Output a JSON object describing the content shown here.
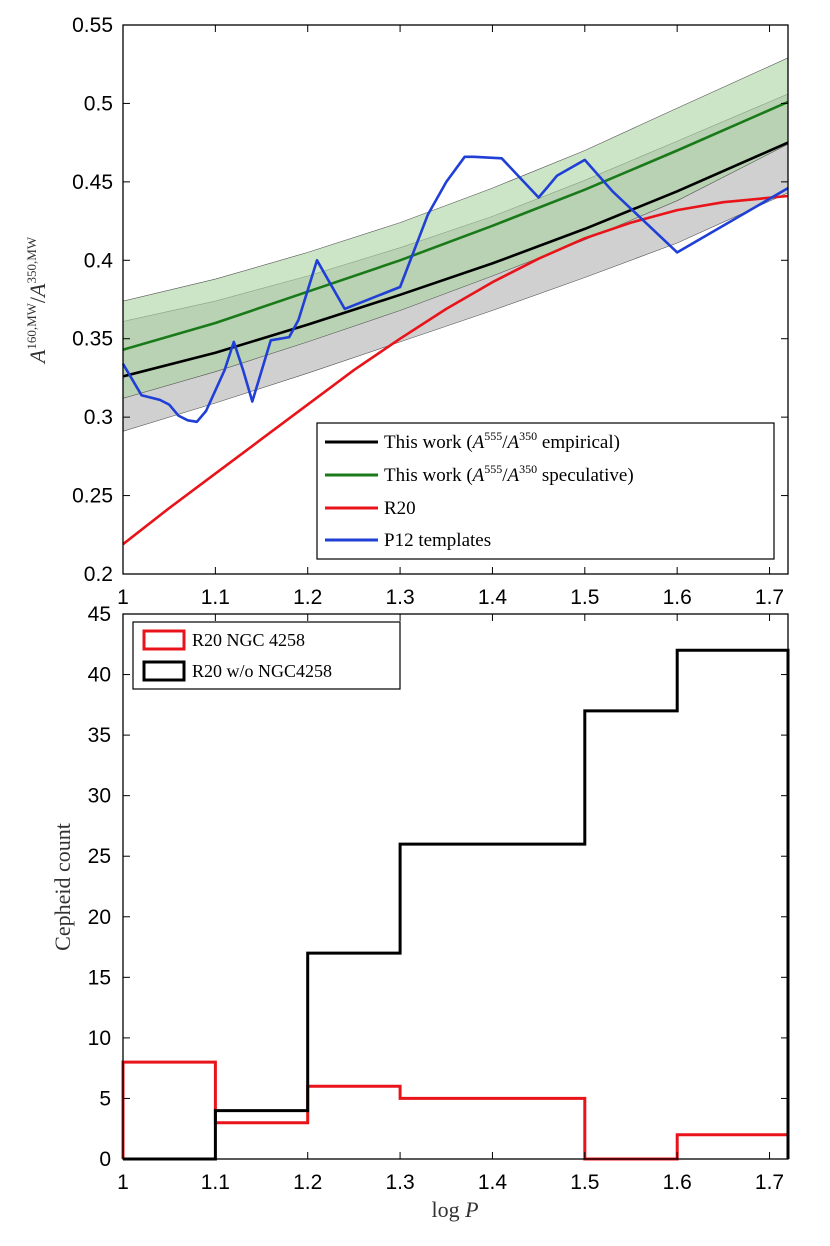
{
  "chart_data": [
    {
      "type": "line",
      "xlim": [
        1,
        1.72
      ],
      "ylim": [
        0.2,
        0.55
      ],
      "xticks": [
        "1",
        "1.1",
        "1.2",
        "1.3",
        "1.4",
        "1.5",
        "1.6",
        "1.7"
      ],
      "yticks": [
        "0.2",
        "0.25",
        "0.3",
        "0.35",
        "0.4",
        "0.45",
        "0.5",
        "0.55"
      ],
      "ylabel": "A^{160,MW}/A^{350,MW}",
      "legend_position": "bottom-right",
      "legend": [
        {
          "pre": "This work (",
          "italic": "A",
          "sup1": "555",
          "mid": "/",
          "italic2": "A",
          "sup2": "350",
          "post": " empirical)",
          "color": "#000000"
        },
        {
          "pre": "This work (",
          "italic": "A",
          "sup1": "555",
          "mid": "/",
          "italic2": "A",
          "sup2": "350",
          "post": " speculative)",
          "color": "#1a7a1a"
        },
        {
          "text": "R20",
          "color": "#e8141a"
        },
        {
          "text": "P12 templates",
          "color": "#1f3fd6"
        }
      ],
      "series": [
        {
          "name": "This work (A555/A350 empirical)",
          "color": "#000000",
          "x": [
            1.0,
            1.1,
            1.2,
            1.3,
            1.4,
            1.5,
            1.6,
            1.72
          ],
          "y": [
            0.326,
            0.341,
            0.359,
            0.378,
            0.398,
            0.42,
            0.444,
            0.475
          ],
          "band_lower": [
            0.291,
            0.309,
            0.328,
            0.348,
            0.368,
            0.389,
            0.411,
            0.443
          ],
          "band_upper": [
            0.361,
            0.374,
            0.39,
            0.408,
            0.428,
            0.451,
            0.476,
            0.506
          ],
          "band_color": "#c8c8c8"
        },
        {
          "name": "This work (A555/A350 speculative)",
          "color": "#1a7a1a",
          "x": [
            1.0,
            1.1,
            1.2,
            1.3,
            1.4,
            1.5,
            1.6,
            1.72
          ],
          "y": [
            0.343,
            0.36,
            0.38,
            0.4,
            0.422,
            0.445,
            0.47,
            0.501
          ],
          "band_lower": [
            0.312,
            0.329,
            0.348,
            0.368,
            0.39,
            0.413,
            0.438,
            0.474
          ],
          "band_upper": [
            0.374,
            0.388,
            0.405,
            0.424,
            0.446,
            0.47,
            0.497,
            0.529
          ],
          "band_color": "#a8d4a0"
        },
        {
          "name": "R20",
          "color": "#e8141a",
          "x": [
            1.0,
            1.05,
            1.1,
            1.15,
            1.2,
            1.25,
            1.3,
            1.35,
            1.4,
            1.45,
            1.5,
            1.55,
            1.6,
            1.65,
            1.72
          ],
          "y": [
            0.219,
            0.242,
            0.264,
            0.286,
            0.308,
            0.33,
            0.35,
            0.369,
            0.386,
            0.401,
            0.414,
            0.424,
            0.432,
            0.437,
            0.441
          ]
        },
        {
          "name": "P12 templates",
          "color": "#1f3fd6",
          "x": [
            1.0,
            1.02,
            1.04,
            1.05,
            1.06,
            1.07,
            1.08,
            1.09,
            1.11,
            1.12,
            1.13,
            1.14,
            1.16,
            1.18,
            1.19,
            1.21,
            1.24,
            1.3,
            1.33,
            1.35,
            1.37,
            1.38,
            1.41,
            1.45,
            1.46,
            1.47,
            1.5,
            1.53,
            1.6,
            1.72
          ],
          "y": [
            0.334,
            0.314,
            0.311,
            0.308,
            0.301,
            0.298,
            0.297,
            0.304,
            0.33,
            0.348,
            0.33,
            0.31,
            0.349,
            0.351,
            0.362,
            0.4,
            0.369,
            0.383,
            0.429,
            0.45,
            0.466,
            0.466,
            0.465,
            0.44,
            0.447,
            0.454,
            0.464,
            0.444,
            0.405,
            0.446
          ]
        }
      ]
    },
    {
      "type": "bar",
      "xlim": [
        1,
        1.72
      ],
      "ylim": [
        0,
        45
      ],
      "xticks": [
        "1",
        "1.1",
        "1.2",
        "1.3",
        "1.4",
        "1.5",
        "1.6",
        "1.7"
      ],
      "yticks": [
        "0",
        "5",
        "10",
        "15",
        "20",
        "25",
        "30",
        "35",
        "40",
        "45"
      ],
      "xlabel_prefix": "log ",
      "xlabel_var": "P",
      "ylabel": "Cepheid count",
      "legend_position": "top-left",
      "bin_edges": [
        1.0,
        1.1,
        1.2,
        1.3,
        1.5,
        1.6,
        1.72
      ],
      "series": [
        {
          "name": "R20 NGC 4258",
          "color": "#e8141a",
          "values": [
            8,
            3,
            6,
            5,
            0,
            2
          ]
        },
        {
          "name": "R20 w/o NGC4258",
          "color": "#000000",
          "values": [
            0,
            4,
            17,
            26,
            37,
            42
          ]
        }
      ]
    }
  ]
}
